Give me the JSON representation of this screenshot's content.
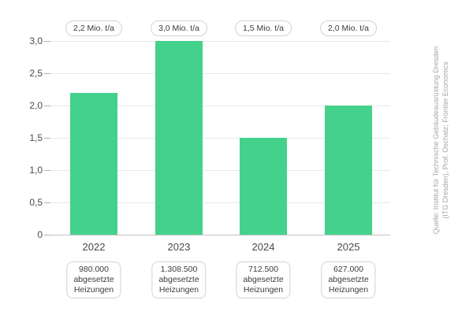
{
  "chart_data": {
    "type": "bar",
    "title": "",
    "xlabel": "",
    "ylabel": "",
    "categories": [
      "2022",
      "2023",
      "2024",
      "2025"
    ],
    "values": [
      2.2,
      3.0,
      1.5,
      2.0
    ],
    "ylim": [
      0,
      3.0
    ],
    "grid": true,
    "legend": "none",
    "y_ticks": [
      {
        "value": 3.0,
        "label": "3,0"
      },
      {
        "value": 2.5,
        "label": "2,5"
      },
      {
        "value": 2.0,
        "label": "2,0"
      },
      {
        "value": 1.5,
        "label": "1,5"
      },
      {
        "value": 1.0,
        "label": "1,0"
      },
      {
        "value": 0.5,
        "label": "0,5"
      },
      {
        "value": 0.0,
        "label": "0"
      }
    ],
    "columns": [
      {
        "year": "2022",
        "value": 2.2,
        "value_label": "2,2 Mio. t/a",
        "units_value": "980.000",
        "units_text_1": "abgesetzte",
        "units_text_2": "Heizungen"
      },
      {
        "year": "2023",
        "value": 3.0,
        "value_label": "3,0 Mio. t/a",
        "units_value": "1.308.500",
        "units_text_1": "abgesetzte",
        "units_text_2": "Heizungen"
      },
      {
        "year": "2024",
        "value": 1.5,
        "value_label": "1,5 Mio. t/a",
        "units_value": "712.500",
        "units_text_1": "abgesetzte",
        "units_text_2": "Heizungen"
      },
      {
        "year": "2025",
        "value": 2.0,
        "value_label": "2,0 Mio. t/a",
        "units_value": "627.000",
        "units_text_1": "abgesetzte",
        "units_text_2": "Heizungen"
      }
    ],
    "colors": {
      "bar": "#44d18c",
      "grid": "#e8e8e8",
      "zero_axis": "#c3c3c3",
      "axis_text": "#4a4a4a",
      "annotation_border": "#d3d3d3",
      "source_text": "#a6a6a6"
    },
    "source_lines": [
      "Quelle: Institut für Technische Gebäudeausrüstung Dresden",
      "(ITG Dresden), Prof. Oschatz; Frontier Economics"
    ]
  }
}
